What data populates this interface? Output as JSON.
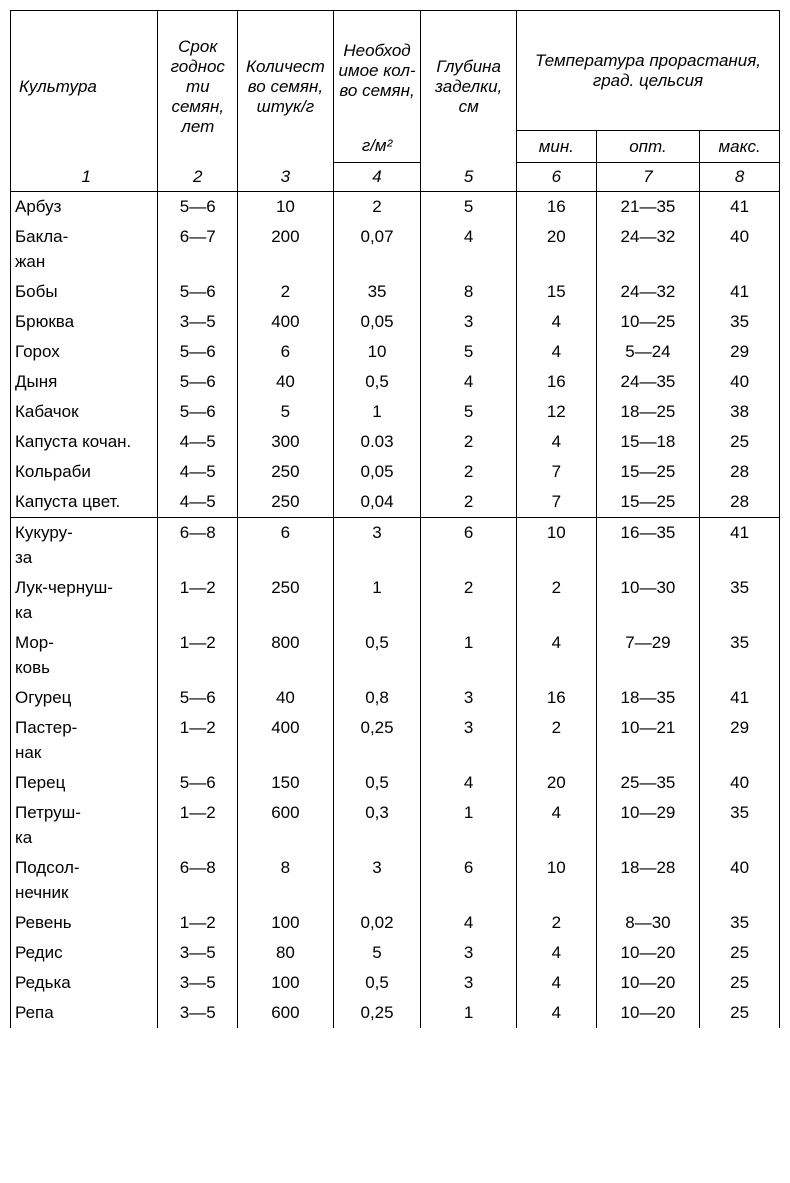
{
  "table": {
    "type": "table",
    "background_color": "#ffffff",
    "text_color": "#000000",
    "border_color": "#000000",
    "font_family": "Arial",
    "font_size_pt": 12,
    "header_font_style": "italic",
    "headers": {
      "culture": "Культура",
      "shelf_life": "Срок годнос ти семян, лет",
      "seed_count": "Количест во семян, штук/г",
      "needed_amount_top": "Необход имое кол-во семян,",
      "needed_amount_bottom": "г/м²",
      "planting_depth": "Глубина заделки, см",
      "temp_group": "Температура прорастания, град. цельсия",
      "temp_min": "мин.",
      "temp_opt": "опт.",
      "temp_max": "макс."
    },
    "col_numbers": [
      "1",
      "2",
      "3",
      "4",
      "5",
      "6",
      "7",
      "8"
    ],
    "column_widths_pct": [
      18.5,
      10,
      12,
      11,
      12,
      10,
      13,
      10
    ],
    "sections": [
      {
        "rows": [
          {
            "culture": [
              "Арбуз"
            ],
            "c2": "5—6",
            "c3": "10",
            "c4": "2",
            "c5": "5",
            "c6": "16",
            "c7": "21—35",
            "c8": "41"
          },
          {
            "culture": [
              "Бакла-",
              "жан"
            ],
            "c2": "6—7",
            "c3": "200",
            "c4": "0,07",
            "c5": "4",
            "c6": "20",
            "c7": "24—32",
            "c8": "40"
          },
          {
            "culture": [
              "Бобы"
            ],
            "c2": "5—6",
            "c3": "2",
            "c4": "35",
            "c5": "8",
            "c6": "15",
            "c7": "24—32",
            "c8": "41"
          },
          {
            "culture": [
              "Брюква"
            ],
            "c2": "3—5",
            "c3": "400",
            "c4": "0,05",
            "c5": "3",
            "c6": "4",
            "c7": "10—25",
            "c8": "35"
          },
          {
            "culture": [
              "Горох"
            ],
            "c2": "5—6",
            "c3": "6",
            "c4": "10",
            "c5": "5",
            "c6": "4",
            "c7": "5—24",
            "c8": "29"
          },
          {
            "culture": [
              "Дыня"
            ],
            "c2": "5—6",
            "c3": "40",
            "c4": "0,5",
            "c5": "4",
            "c6": "16",
            "c7": "24—35",
            "c8": "40"
          },
          {
            "culture": [
              "Кабачок"
            ],
            "c2": "5—6",
            "c3": "5",
            "c4": "1",
            "c5": "5",
            "c6": "12",
            "c7": "18—25",
            "c8": "38"
          },
          {
            "culture": [
              "Капуста кочан."
            ],
            "c2": "4—5",
            "c3": "300",
            "c4": "0.03",
            "c5": "2",
            "c6": "4",
            "c7": "15—18",
            "c8": "25"
          },
          {
            "culture": [
              "Кольраби"
            ],
            "c2": "4—5",
            "c3": "250",
            "c4": "0,05",
            "c5": "2",
            "c6": "7",
            "c7": "15—25",
            "c8": "28"
          },
          {
            "culture": [
              "Капуста цвет."
            ],
            "c2": "4—5",
            "c3": "250",
            "c4": "0,04",
            "c5": "2",
            "c6": "7",
            "c7": "15—25",
            "c8": "28"
          }
        ]
      },
      {
        "rows": [
          {
            "culture": [
              "Кукуру-",
              "за"
            ],
            "c2": "6—8",
            "c3": "6",
            "c4": "3",
            "c5": "6",
            "c6": "10",
            "c7": "16—35",
            "c8": "41"
          },
          {
            "culture": [
              "Лук-чернуш-",
              "ка"
            ],
            "c2": "1—2",
            "c3": "250",
            "c4": "1",
            "c5": "2",
            "c6": "2",
            "c7": "10—30",
            "c8": "35"
          },
          {
            "culture": [
              "Мор-",
              "ковь"
            ],
            "c2": "1—2",
            "c3": "800",
            "c4": "0,5",
            "c5": "1",
            "c6": "4",
            "c7": "7—29",
            "c8": "35"
          },
          {
            "culture": [
              "Огурец"
            ],
            "c2": "5—6",
            "c3": "40",
            "c4": "0,8",
            "c5": "3",
            "c6": "16",
            "c7": "18—35",
            "c8": "41"
          },
          {
            "culture": [
              "Пастер-",
              "нак"
            ],
            "c2": "1—2",
            "c3": "400",
            "c4": "0,25",
            "c5": "3",
            "c6": "2",
            "c7": "10—21",
            "c8": "29"
          },
          {
            "culture": [
              "Перец"
            ],
            "c2": "5—6",
            "c3": "150",
            "c4": "0,5",
            "c5": "4",
            "c6": "20",
            "c7": "25—35",
            "c8": "40"
          },
          {
            "culture": [
              "Петруш-",
              "ка"
            ],
            "c2": "1—2",
            "c3": "600",
            "c4": "0,3",
            "c5": "1",
            "c6": "4",
            "c7": "10—29",
            "c8": "35"
          },
          {
            "culture": [
              "Подсол-",
              "нечник"
            ],
            "c2": "6—8",
            "c3": "8",
            "c4": "3",
            "c5": "6",
            "c6": "10",
            "c7": "18—28",
            "c8": "40"
          },
          {
            "culture": [
              "Ревень"
            ],
            "c2": "1—2",
            "c3": "100",
            "c4": "0,02",
            "c5": "4",
            "c6": "2",
            "c7": "8—30",
            "c8": "35"
          },
          {
            "culture": [
              "Редис"
            ],
            "c2": "3—5",
            "c3": "80",
            "c4": "5",
            "c5": "3",
            "c6": "4",
            "c7": "10—20",
            "c8": "25"
          },
          {
            "culture": [
              "Редька"
            ],
            "c2": "3—5",
            "c3": "100",
            "c4": "0,5",
            "c5": "3",
            "c6": "4",
            "c7": "10—20",
            "c8": "25"
          },
          {
            "culture": [
              "Репа"
            ],
            "c2": "3—5",
            "c3": "600",
            "c4": "0,25",
            "c5": "1",
            "c6": "4",
            "c7": "10—20",
            "c8": "25"
          }
        ]
      }
    ]
  }
}
